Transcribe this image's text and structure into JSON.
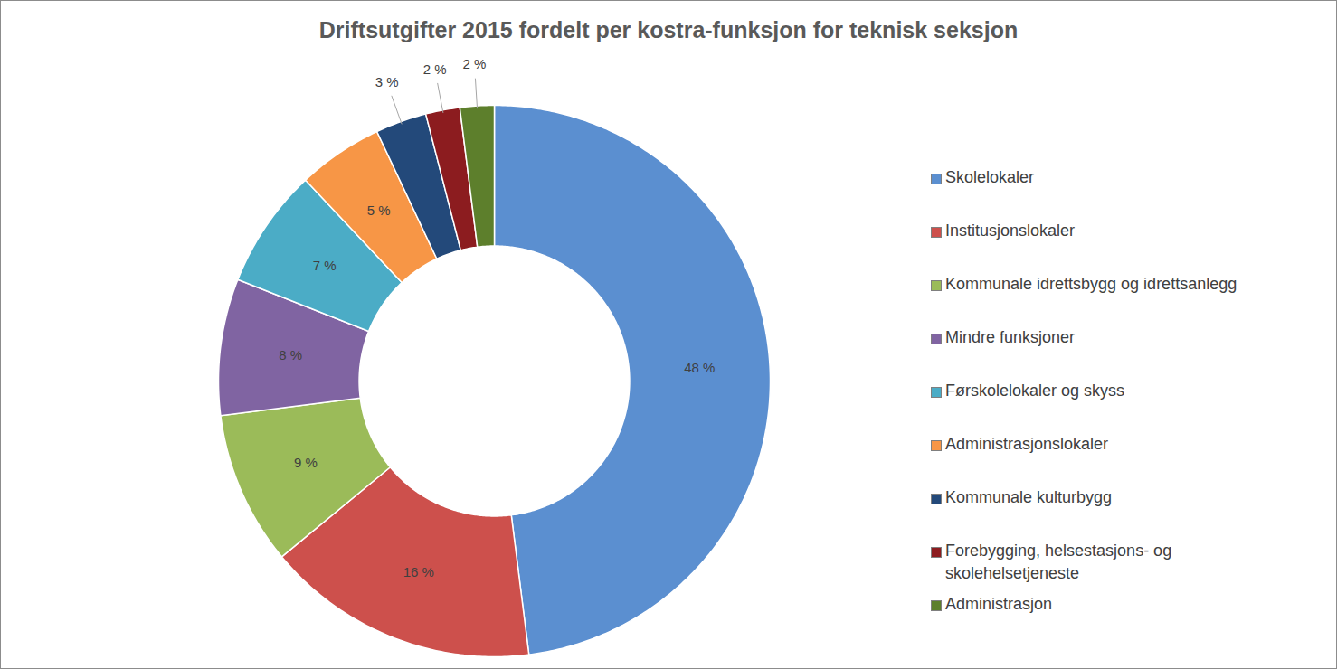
{
  "chart_data": {
    "type": "pie",
    "title": "Driftsutgifter 2015 fordelt per kostra-funksjon for teknisk seksjon",
    "categories": [
      "Skolelokaler",
      "Institusjonslokaler",
      "Kommunale idrettsbygg og idrettsanlegg",
      "Mindre funksjoner",
      "Førskolelokaler og skyss",
      "Administrasjonslokaler",
      "Kommunale kulturbygg",
      "Forebygging, helsestasjons- og skolehelsetjeneste",
      "Administrasjon"
    ],
    "values": [
      48,
      16,
      9,
      8,
      7,
      5,
      3,
      2,
      2
    ],
    "value_labels": [
      "48 %",
      "16 %",
      "9 %",
      "8 %",
      "7 %",
      "5 %",
      "3 %",
      "2 %",
      "2 %"
    ],
    "colors": [
      "#5b8fd0",
      "#cd504c",
      "#9bbb59",
      "#8064a2",
      "#4bacc6",
      "#f79646",
      "#23497a",
      "#8c1c1f",
      "#5d7f2c"
    ],
    "data_labels": true,
    "legend": "right"
  }
}
